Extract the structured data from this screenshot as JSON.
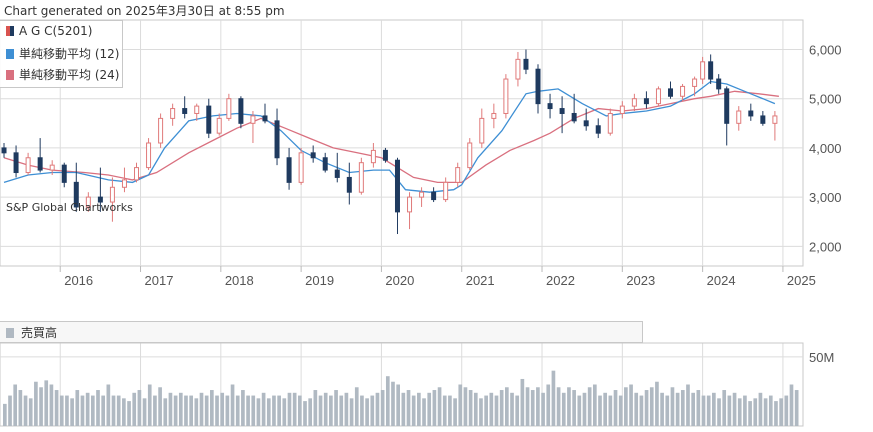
{
  "header": "Chart generated on 2025年3月30日 at 8:55 pm",
  "legend": [
    {
      "label": "A G C(5201)",
      "color": "#d9534f"
    },
    {
      "label": "単純移動平均 (12)",
      "color": "#3e8fd4"
    },
    {
      "label": "単純移動平均 (24)",
      "color": "#d9707f"
    }
  ],
  "watermark": "S&P Global Chartworks",
  "volume_label": "売買高",
  "volume_axis": "50M",
  "colors": {
    "up": "#e07a7a",
    "down": "#1f3a5f",
    "ma12": "#3e8fd4",
    "ma24": "#d9707f",
    "volume": "#b0b9c2",
    "grid": "#dcdcdc"
  },
  "chart_data": [
    {
      "type": "candlestick",
      "title": "",
      "xlabel": "",
      "ylabel": "",
      "x_ticks": [
        "2016",
        "2017",
        "2018",
        "2019",
        "2020",
        "2021",
        "2022",
        "2023",
        "2024",
        "2025"
      ],
      "y_ticks": [
        "2,000",
        "3,000",
        "4,000",
        "5,000",
        "6,000"
      ],
      "ylim": [
        1600,
        6600
      ],
      "x_range": [
        2015.25,
        2025.25
      ],
      "series": [
        {
          "name": "A G C(5201)",
          "kind": "ohlc",
          "points": [
            [
              2015.3,
              4000,
              4100,
              3800,
              3900
            ],
            [
              2015.45,
              3900,
              4050,
              3400,
              3500
            ],
            [
              2015.6,
              3500,
              3900,
              3450,
              3800
            ],
            [
              2015.75,
              3800,
              4200,
              3500,
              3550
            ],
            [
              2015.9,
              3550,
              3750,
              3450,
              3650
            ],
            [
              2016.05,
              3650,
              3700,
              3200,
              3300
            ],
            [
              2016.2,
              3300,
              3700,
              2700,
              2800
            ],
            [
              2016.35,
              2800,
              3100,
              2700,
              3000
            ],
            [
              2016.5,
              3000,
              3600,
              2700,
              2900
            ],
            [
              2016.65,
              2900,
              3400,
              2500,
              3200
            ],
            [
              2016.8,
              3200,
              3600,
              3100,
              3350
            ],
            [
              2016.95,
              3350,
              3700,
              3300,
              3600
            ],
            [
              2017.1,
              3600,
              4200,
              3550,
              4100
            ],
            [
              2017.25,
              4100,
              4700,
              4000,
              4600
            ],
            [
              2017.4,
              4600,
              4900,
              4450,
              4800
            ],
            [
              2017.55,
              4800,
              5050,
              4600,
              4700
            ],
            [
              2017.7,
              4700,
              4900,
              4550,
              4850
            ],
            [
              2017.85,
              4850,
              5000,
              4200,
              4300
            ],
            [
              2017.98,
              4300,
              4700,
              4250,
              4600
            ],
            [
              2018.1,
              4600,
              5100,
              4550,
              5000
            ],
            [
              2018.25,
              5000,
              5050,
              4400,
              4500
            ],
            [
              2018.4,
              4500,
              4750,
              4100,
              4650
            ],
            [
              2018.55,
              4650,
              4900,
              4500,
              4550
            ],
            [
              2018.7,
              4550,
              4800,
              3650,
              3800
            ],
            [
              2018.85,
              3800,
              4000,
              3150,
              3300
            ],
            [
              2019.0,
              3300,
              4000,
              3250,
              3900
            ],
            [
              2019.15,
              3900,
              4050,
              3700,
              3800
            ],
            [
              2019.3,
              3800,
              3900,
              3500,
              3550
            ],
            [
              2019.45,
              3550,
              3900,
              3300,
              3400
            ],
            [
              2019.6,
              3400,
              3700,
              2850,
              3100
            ],
            [
              2019.75,
              3100,
              3800,
              3050,
              3700
            ],
            [
              2019.9,
              3700,
              4100,
              3600,
              3950
            ],
            [
              2020.05,
              3950,
              4000,
              3700,
              3750
            ],
            [
              2020.2,
              3750,
              3800,
              2250,
              2700
            ],
            [
              2020.35,
              2700,
              3100,
              2350,
              3000
            ],
            [
              2020.5,
              3000,
              3200,
              2800,
              3100
            ],
            [
              2020.65,
              3100,
              3200,
              2900,
              2950
            ],
            [
              2020.8,
              2950,
              3400,
              2900,
              3300
            ],
            [
              2020.95,
              3300,
              3700,
              3200,
              3600
            ],
            [
              2021.1,
              3600,
              4200,
              3550,
              4100
            ],
            [
              2021.25,
              4100,
              4800,
              4000,
              4600
            ],
            [
              2021.4,
              4600,
              4900,
              4400,
              4700
            ],
            [
              2021.55,
              4700,
              5500,
              4600,
              5400
            ],
            [
              2021.7,
              5400,
              5950,
              5250,
              5800
            ],
            [
              2021.8,
              5800,
              6000,
              5500,
              5600
            ],
            [
              2021.95,
              5600,
              5700,
              4700,
              4900
            ],
            [
              2022.1,
              4900,
              5100,
              4600,
              4800
            ],
            [
              2022.25,
              4800,
              5050,
              4300,
              4700
            ],
            [
              2022.4,
              4700,
              5100,
              4500,
              4550
            ],
            [
              2022.55,
              4550,
              4800,
              4350,
              4450
            ],
            [
              2022.7,
              4450,
              4600,
              4200,
              4300
            ],
            [
              2022.85,
              4300,
              4800,
              4250,
              4700
            ],
            [
              2023.0,
              4700,
              4950,
              4600,
              4850
            ],
            [
              2023.15,
              4850,
              5100,
              4750,
              5000
            ],
            [
              2023.3,
              5000,
              5150,
              4800,
              4900
            ],
            [
              2023.45,
              4900,
              5250,
              4850,
              5200
            ],
            [
              2023.6,
              5200,
              5350,
              5000,
              5050
            ],
            [
              2023.75,
              5050,
              5300,
              4950,
              5250
            ],
            [
              2023.9,
              5250,
              5450,
              5050,
              5400
            ],
            [
              2024.0,
              5400,
              5850,
              5300,
              5750
            ],
            [
              2024.1,
              5750,
              5900,
              5300,
              5400
            ],
            [
              2024.2,
              5400,
              5500,
              5100,
              5200
            ],
            [
              2024.3,
              5200,
              5250,
              4050,
              4500
            ],
            [
              2024.45,
              4500,
              4850,
              4350,
              4750
            ],
            [
              2024.6,
              4750,
              4900,
              4550,
              4650
            ],
            [
              2024.75,
              4650,
              4750,
              4450,
              4500
            ],
            [
              2024.9,
              4500,
              4750,
              4150,
              4650
            ]
          ]
        },
        {
          "name": "単純移動平均 (12)",
          "kind": "line",
          "points": [
            [
              2015.3,
              3300
            ],
            [
              2015.6,
              3450
            ],
            [
              2015.9,
              3500
            ],
            [
              2016.2,
              3500
            ],
            [
              2016.6,
              3350
            ],
            [
              2016.9,
              3300
            ],
            [
              2017.1,
              3450
            ],
            [
              2017.3,
              4000
            ],
            [
              2017.6,
              4550
            ],
            [
              2017.9,
              4650
            ],
            [
              2018.2,
              4700
            ],
            [
              2018.5,
              4650
            ],
            [
              2018.75,
              4350
            ],
            [
              2019.0,
              3950
            ],
            [
              2019.3,
              3700
            ],
            [
              2019.6,
              3500
            ],
            [
              2019.9,
              3550
            ],
            [
              2020.1,
              3550
            ],
            [
              2020.3,
              3150
            ],
            [
              2020.6,
              3100
            ],
            [
              2020.9,
              3150
            ],
            [
              2021.0,
              3250
            ],
            [
              2021.2,
              3800
            ],
            [
              2021.5,
              4350
            ],
            [
              2021.8,
              5100
            ],
            [
              2021.95,
              5150
            ],
            [
              2022.2,
              5200
            ],
            [
              2022.5,
              4900
            ],
            [
              2022.8,
              4650
            ],
            [
              2023.0,
              4700
            ],
            [
              2023.3,
              4750
            ],
            [
              2023.6,
              4850
            ],
            [
              2023.9,
              5100
            ],
            [
              2024.1,
              5350
            ],
            [
              2024.3,
              5300
            ],
            [
              2024.6,
              5100
            ],
            [
              2024.9,
              4900
            ]
          ]
        },
        {
          "name": "単純移動平均 (24)",
          "kind": "line",
          "points": [
            [
              2015.3,
              3800
            ],
            [
              2015.6,
              3650
            ],
            [
              2015.9,
              3550
            ],
            [
              2016.3,
              3500
            ],
            [
              2016.6,
              3450
            ],
            [
              2016.9,
              3350
            ],
            [
              2017.2,
              3500
            ],
            [
              2017.6,
              3900
            ],
            [
              2017.9,
              4150
            ],
            [
              2018.2,
              4400
            ],
            [
              2018.5,
              4600
            ],
            [
              2018.8,
              4400
            ],
            [
              2019.1,
              4200
            ],
            [
              2019.4,
              4000
            ],
            [
              2019.7,
              3900
            ],
            [
              2020.0,
              3800
            ],
            [
              2020.2,
              3600
            ],
            [
              2020.4,
              3400
            ],
            [
              2020.7,
              3300
            ],
            [
              2021.0,
              3300
            ],
            [
              2021.3,
              3650
            ],
            [
              2021.6,
              3950
            ],
            [
              2021.9,
              4150
            ],
            [
              2022.1,
              4300
            ],
            [
              2022.4,
              4600
            ],
            [
              2022.7,
              4800
            ],
            [
              2023.0,
              4750
            ],
            [
              2023.3,
              4800
            ],
            [
              2023.6,
              4900
            ],
            [
              2023.9,
              5000
            ],
            [
              2024.1,
              5050
            ],
            [
              2024.4,
              5150
            ],
            [
              2024.7,
              5100
            ],
            [
              2024.95,
              5050
            ]
          ]
        }
      ]
    },
    {
      "type": "bar",
      "title": "",
      "xlabel": "",
      "ylabel": "",
      "y_ticks": [
        "50M"
      ],
      "ylim": [
        0,
        60
      ],
      "series": [
        {
          "name": "売買高",
          "values": [
            16,
            22,
            30,
            26,
            22,
            20,
            32,
            28,
            33,
            30,
            26,
            22,
            22,
            20,
            26,
            22,
            24,
            22,
            26,
            22,
            30,
            22,
            22,
            20,
            18,
            24,
            26,
            20,
            30,
            22,
            28,
            20,
            24,
            22,
            24,
            22,
            22,
            20,
            24,
            22,
            26,
            22,
            24,
            22,
            30,
            22,
            26,
            22,
            22,
            20,
            24,
            20,
            22,
            22,
            20,
            24,
            24,
            22,
            18,
            20,
            26,
            22,
            24,
            22,
            26,
            22,
            24,
            20,
            28,
            22,
            20,
            22,
            24,
            26,
            36,
            32,
            30,
            24,
            26,
            22,
            24,
            20,
            24,
            26,
            28,
            22,
            22,
            20,
            30,
            28,
            26,
            24,
            20,
            22,
            24,
            22,
            26,
            28,
            24,
            22,
            34,
            28,
            26,
            28,
            24,
            30,
            40,
            28,
            24,
            28,
            26,
            22,
            24,
            28,
            30,
            22,
            24,
            22,
            26,
            22,
            28,
            30,
            24,
            22,
            26,
            28,
            32,
            24,
            22,
            28,
            24,
            26,
            30,
            24,
            26,
            22,
            22,
            24,
            20,
            26,
            22,
            24,
            20,
            22,
            18,
            20,
            24,
            20,
            22,
            18,
            20,
            22,
            30,
            26
          ]
        }
      ]
    }
  ]
}
